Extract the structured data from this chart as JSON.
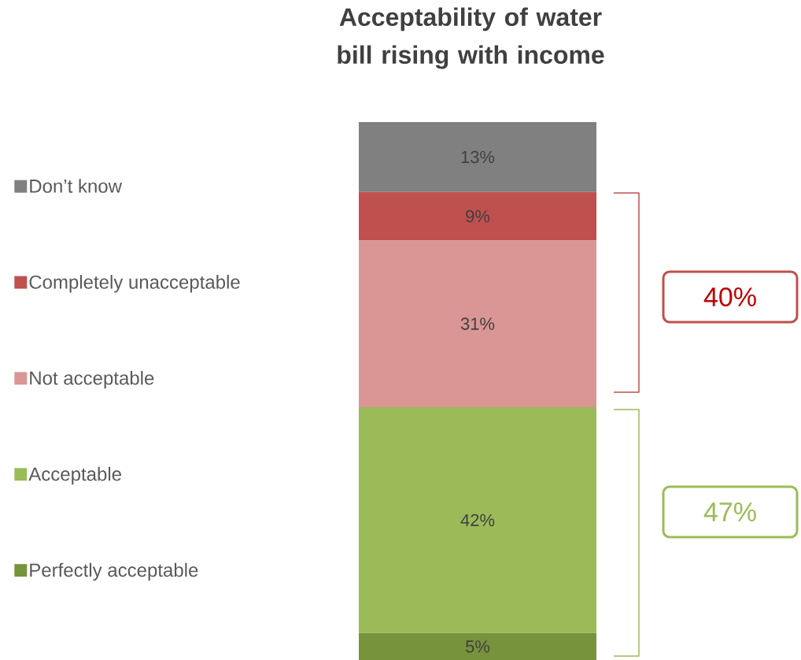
{
  "chart_data": {
    "type": "bar",
    "stacked": true,
    "title": "Acceptability of water bill rising with income",
    "categories": [
      null
    ],
    "series": [
      {
        "name": "Perfectly acceptable",
        "color": "#77933c",
        "values": [
          5
        ],
        "value_labels": [
          "5%"
        ]
      },
      {
        "name": "Acceptable",
        "color": "#9bbb59",
        "values": [
          42
        ],
        "value_labels": [
          "42%"
        ]
      },
      {
        "name": "Not acceptable",
        "color": "#d99694",
        "values": [
          31
        ],
        "value_labels": [
          "31%"
        ]
      },
      {
        "name": "Completely unacceptable",
        "color": "#c0504d",
        "values": [
          9
        ],
        "value_labels": [
          "9%"
        ]
      },
      {
        "name": "Don’t know",
        "color": "#808080",
        "values": [
          13
        ],
        "value_labels": [
          "13%"
        ]
      }
    ],
    "legend": "left",
    "annotations": [
      "40%",
      "47%"
    ]
  }
}
